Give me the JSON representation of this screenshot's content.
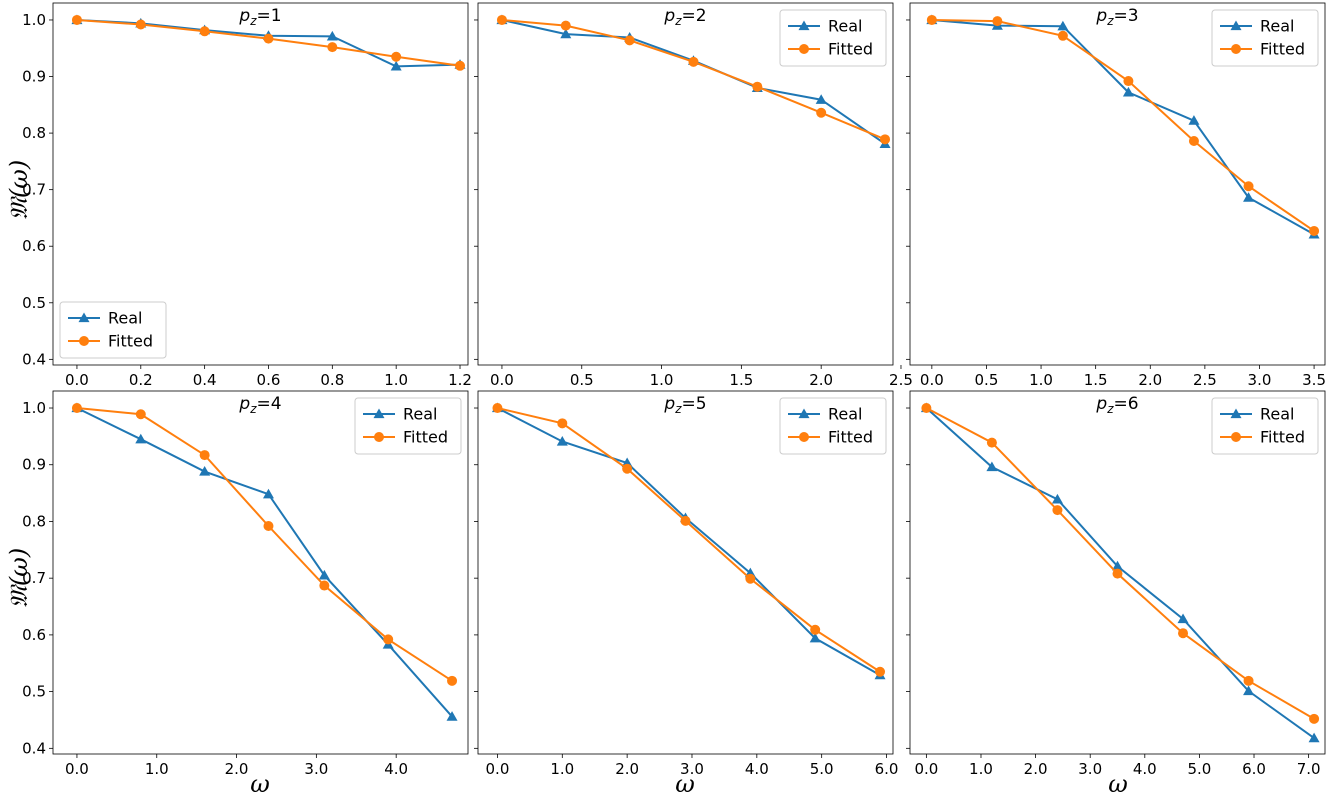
{
  "figure": {
    "ylabel": "𝔐(ω)",
    "xlabel": "ω",
    "colors": {
      "real": "#1f77b4",
      "fitted": "#ff7f0e"
    }
  },
  "chart_data": [
    {
      "type": "line",
      "title_prefix": "p",
      "title_sub": "z",
      "title_value": "=1",
      "x": [
        0.0,
        0.2,
        0.4,
        0.6,
        0.8,
        1.0,
        1.2
      ],
      "series": [
        {
          "name": "Real",
          "marker": "triangle",
          "values": [
            1.0,
            0.994,
            0.982,
            0.972,
            0.971,
            0.918,
            0.921
          ]
        },
        {
          "name": "Fitted",
          "marker": "circle",
          "values": [
            1.0,
            0.992,
            0.98,
            0.967,
            0.952,
            0.935,
            0.919
          ]
        }
      ],
      "xlim": [
        -0.075,
        1.225
      ],
      "ylim": [
        0.39,
        1.03
      ],
      "xticks": [
        0.0,
        0.2,
        0.4,
        0.6,
        0.8,
        1.0,
        1.2
      ],
      "xtick_labels": [
        "0.0",
        "0.2",
        "0.4",
        "0.6",
        "0.8",
        "1.0",
        "1.2"
      ],
      "yticks": [
        0.4,
        0.5,
        0.6,
        0.7,
        0.8,
        0.9,
        1.0
      ],
      "ytick_labels": [
        "0.4",
        "0.5",
        "0.6",
        "0.7",
        "0.8",
        "0.9",
        "1.0"
      ],
      "legend": "lower-left"
    },
    {
      "type": "line",
      "title_prefix": "p",
      "title_sub": "z",
      "title_value": "=2",
      "x": [
        0.0,
        0.4,
        0.8,
        1.2,
        1.6,
        2.0,
        2.4
      ],
      "series": [
        {
          "name": "Real",
          "marker": "triangle",
          "values": [
            1.0,
            0.975,
            0.969,
            0.928,
            0.88,
            0.859,
            0.781
          ]
        },
        {
          "name": "Fitted",
          "marker": "circle",
          "values": [
            1.0,
            0.99,
            0.964,
            0.926,
            0.882,
            0.836,
            0.789
          ]
        }
      ],
      "xlim": [
        -0.15,
        2.45
      ],
      "ylim": [
        0.39,
        1.03
      ],
      "xticks": [
        0.0,
        0.5,
        1.0,
        1.5,
        2.0,
        2.5
      ],
      "xtick_labels": [
        "0.0",
        "0.5",
        "1.0",
        "1.5",
        "2.0",
        "2.5"
      ],
      "yticks": [],
      "ytick_labels": [],
      "legend": "upper-right"
    },
    {
      "type": "line",
      "title_prefix": "p",
      "title_sub": "z",
      "title_value": "=3",
      "x": [
        0.0,
        0.6,
        1.2,
        1.8,
        2.4,
        2.9,
        3.5
      ],
      "series": [
        {
          "name": "Real",
          "marker": "triangle",
          "values": [
            1.0,
            0.99,
            0.989,
            0.872,
            0.822,
            0.686,
            0.621
          ]
        },
        {
          "name": "Fitted",
          "marker": "circle",
          "values": [
            1.0,
            0.998,
            0.972,
            0.892,
            0.786,
            0.706,
            0.627
          ]
        }
      ],
      "xlim": [
        -0.2,
        3.6
      ],
      "ylim": [
        0.39,
        1.03
      ],
      "xticks": [
        0.0,
        0.5,
        1.0,
        1.5,
        2.0,
        2.5,
        3.0,
        3.5
      ],
      "xtick_labels": [
        "0.0",
        "0.5",
        "1.0",
        "1.5",
        "2.0",
        "2.5",
        "3.0",
        "3.5"
      ],
      "yticks": [],
      "ytick_labels": [],
      "legend": "upper-right"
    },
    {
      "type": "line",
      "title_prefix": "p",
      "title_sub": "z",
      "title_value": "=4",
      "x": [
        0.0,
        0.8,
        1.6,
        2.4,
        3.1,
        3.9,
        4.7
      ],
      "series": [
        {
          "name": "Real",
          "marker": "triangle",
          "values": [
            1.0,
            0.945,
            0.888,
            0.848,
            0.705,
            0.583,
            0.456
          ]
        },
        {
          "name": "Fitted",
          "marker": "circle",
          "values": [
            1.0,
            0.989,
            0.917,
            0.792,
            0.687,
            0.592,
            0.519
          ]
        }
      ],
      "xlim": [
        -0.3,
        4.9
      ],
      "ylim": [
        0.39,
        1.03
      ],
      "xticks": [
        0.0,
        1.0,
        2.0,
        3.0,
        4.0
      ],
      "xtick_labels": [
        "0.0",
        "1.0",
        "2.0",
        "3.0",
        "4.0"
      ],
      "yticks": [
        0.4,
        0.5,
        0.6,
        0.7,
        0.8,
        0.9,
        1.0
      ],
      "ytick_labels": [
        "0.4",
        "0.5",
        "0.6",
        "0.7",
        "0.8",
        "0.9",
        "1.0"
      ],
      "legend": "upper-right"
    },
    {
      "type": "line",
      "title_prefix": "p",
      "title_sub": "z",
      "title_value": "=5",
      "x": [
        0.0,
        1.0,
        2.0,
        2.9,
        3.9,
        4.9,
        5.9
      ],
      "series": [
        {
          "name": "Real",
          "marker": "triangle",
          "values": [
            1.0,
            0.941,
            0.903,
            0.806,
            0.709,
            0.594,
            0.529
          ]
        },
        {
          "name": "Fitted",
          "marker": "circle",
          "values": [
            1.0,
            0.973,
            0.893,
            0.801,
            0.699,
            0.609,
            0.535
          ]
        }
      ],
      "xlim": [
        -0.3,
        6.1
      ],
      "ylim": [
        0.39,
        1.03
      ],
      "xticks": [
        0.0,
        1.0,
        2.0,
        3.0,
        4.0,
        5.0,
        6.0
      ],
      "xtick_labels": [
        "0.0",
        "1.0",
        "2.0",
        "3.0",
        "4.0",
        "5.0",
        "6.0"
      ],
      "yticks": [],
      "ytick_labels": [],
      "legend": "upper-right"
    },
    {
      "type": "line",
      "title_prefix": "p",
      "title_sub": "z",
      "title_value": "=6",
      "x": [
        0.0,
        1.2,
        2.4,
        3.5,
        4.7,
        5.9,
        7.1
      ],
      "series": [
        {
          "name": "Real",
          "marker": "triangle",
          "values": [
            1.0,
            0.896,
            0.839,
            0.721,
            0.628,
            0.501,
            0.418
          ]
        },
        {
          "name": "Fitted",
          "marker": "circle",
          "values": [
            1.0,
            0.939,
            0.82,
            0.708,
            0.603,
            0.519,
            0.452
          ]
        }
      ],
      "xlim": [
        -0.3,
        7.3
      ],
      "ylim": [
        0.39,
        1.03
      ],
      "xticks": [
        0.0,
        1.0,
        2.0,
        3.0,
        4.0,
        5.0,
        6.0,
        7.0
      ],
      "xtick_labels": [
        "0.0",
        "1.0",
        "2.0",
        "3.0",
        "4.0",
        "5.0",
        "6.0",
        "7.0"
      ],
      "yticks": [],
      "ytick_labels": [],
      "legend": "upper-right"
    }
  ]
}
